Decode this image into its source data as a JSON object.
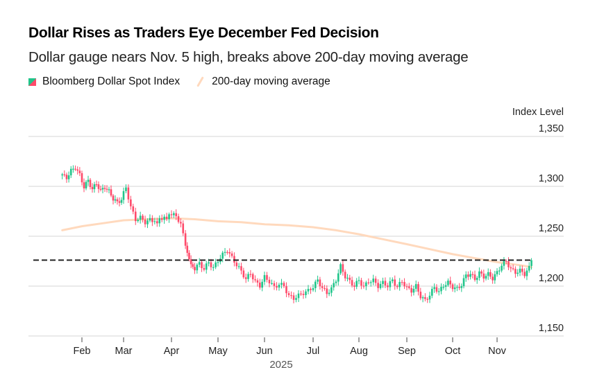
{
  "header": {
    "title": "Dollar Rises as Traders Eye December Fed Decision",
    "subtitle": "Dollar gauge nears Nov. 5 high, breaks above 200-day moving average"
  },
  "legend": [
    {
      "label": "Bloomberg Dollar Spot Index",
      "icon": "candlestick-swatch-icon"
    },
    {
      "label": "200-day moving average",
      "icon": "line-swatch-icon"
    }
  ],
  "colors": {
    "up": "#1fc58a",
    "down": "#ff4a6a",
    "moving_average": "#ffd9bd",
    "reference_line": "#222222",
    "grid": "#e3e3e3"
  },
  "chart_data": {
    "type": "candlestick",
    "title": "Dollar Rises as Traders Eye December Fed Decision",
    "subtitle": "Dollar gauge nears Nov. 5 high, breaks above 200-day moving average",
    "ylabel": "Index Level",
    "xlabel": "2025",
    "ylim": [
      1140,
      1350
    ],
    "y_ticks": [
      1350,
      1300,
      1250,
      1200,
      1150
    ],
    "y_tick_labels": [
      "1,350",
      "1,300",
      "1,250",
      "1,200",
      "1,150"
    ],
    "x_ticks": [
      "Feb",
      "Mar",
      "Apr",
      "May",
      "Jun",
      "Jul",
      "Aug",
      "Sep",
      "Oct",
      "Nov"
    ],
    "x_range_months": [
      0.45,
      10.75
    ],
    "grid": true,
    "legend_position": "top-left",
    "reference_line": {
      "value": 1226,
      "style": "dashed",
      "label": "Nov. 5 high"
    },
    "series": [
      {
        "name": "Bloomberg Dollar Spot Index",
        "kind": "candlestick",
        "waypoints_month_close": [
          [
            0.55,
            1312
          ],
          [
            0.65,
            1308
          ],
          [
            0.75,
            1316
          ],
          [
            0.85,
            1319
          ],
          [
            0.95,
            1311
          ],
          [
            1.05,
            1300
          ],
          [
            1.15,
            1305
          ],
          [
            1.25,
            1298
          ],
          [
            1.35,
            1302
          ],
          [
            1.45,
            1296
          ],
          [
            1.55,
            1299
          ],
          [
            1.65,
            1295
          ],
          [
            1.75,
            1288
          ],
          [
            1.85,
            1283
          ],
          [
            1.95,
            1288
          ],
          [
            2.05,
            1298
          ],
          [
            2.15,
            1280
          ],
          [
            2.25,
            1266
          ],
          [
            2.35,
            1269
          ],
          [
            2.45,
            1264
          ],
          [
            2.55,
            1266
          ],
          [
            2.7,
            1265
          ],
          [
            2.85,
            1268
          ],
          [
            3.0,
            1272
          ],
          [
            3.1,
            1270
          ],
          [
            3.2,
            1262
          ],
          [
            3.3,
            1242
          ],
          [
            3.38,
            1225
          ],
          [
            3.5,
            1218
          ],
          [
            3.6,
            1222
          ],
          [
            3.7,
            1218
          ],
          [
            3.8,
            1223
          ],
          [
            3.9,
            1219
          ],
          [
            4.0,
            1225
          ],
          [
            4.1,
            1232
          ],
          [
            4.2,
            1236
          ],
          [
            4.3,
            1228
          ],
          [
            4.4,
            1222
          ],
          [
            4.5,
            1214
          ],
          [
            4.6,
            1208
          ],
          [
            4.7,
            1212
          ],
          [
            4.8,
            1205
          ],
          [
            4.9,
            1200
          ],
          [
            5.0,
            1209
          ],
          [
            5.1,
            1205
          ],
          [
            5.2,
            1198
          ],
          [
            5.3,
            1203
          ],
          [
            5.4,
            1199
          ],
          [
            5.5,
            1191
          ],
          [
            5.6,
            1187
          ],
          [
            5.7,
            1191
          ],
          [
            5.8,
            1193
          ],
          [
            5.9,
            1195
          ],
          [
            6.0,
            1200
          ],
          [
            6.1,
            1205
          ],
          [
            6.2,
            1199
          ],
          [
            6.3,
            1192
          ],
          [
            6.4,
            1198
          ],
          [
            6.5,
            1206
          ],
          [
            6.6,
            1220
          ],
          [
            6.7,
            1210
          ],
          [
            6.8,
            1204
          ],
          [
            6.9,
            1201
          ],
          [
            7.0,
            1205
          ],
          [
            7.1,
            1200
          ],
          [
            7.2,
            1204
          ],
          [
            7.3,
            1206
          ],
          [
            7.4,
            1200
          ],
          [
            7.5,
            1203
          ],
          [
            7.6,
            1201
          ],
          [
            7.7,
            1205
          ],
          [
            7.8,
            1200
          ],
          [
            7.9,
            1204
          ],
          [
            8.0,
            1199
          ],
          [
            8.1,
            1195
          ],
          [
            8.2,
            1200
          ],
          [
            8.3,
            1190
          ],
          [
            8.4,
            1185
          ],
          [
            8.5,
            1192
          ],
          [
            8.6,
            1198
          ],
          [
            8.7,
            1195
          ],
          [
            8.8,
            1200
          ],
          [
            8.9,
            1204
          ],
          [
            9.0,
            1199
          ],
          [
            9.1,
            1197
          ],
          [
            9.2,
            1202
          ],
          [
            9.3,
            1210
          ],
          [
            9.4,
            1213
          ],
          [
            9.5,
            1206
          ],
          [
            9.6,
            1214
          ],
          [
            9.7,
            1209
          ],
          [
            9.8,
            1212
          ],
          [
            9.9,
            1208
          ],
          [
            10.0,
            1213
          ],
          [
            10.1,
            1222
          ],
          [
            10.2,
            1224
          ],
          [
            10.3,
            1218
          ],
          [
            10.4,
            1213
          ],
          [
            10.5,
            1216
          ],
          [
            10.6,
            1212
          ],
          [
            10.7,
            1218
          ],
          [
            10.75,
            1226
          ]
        ]
      },
      {
        "name": "200-day moving average",
        "kind": "line",
        "points_month_value": [
          [
            0.55,
            1256
          ],
          [
            1.0,
            1260
          ],
          [
            1.5,
            1263
          ],
          [
            2.0,
            1266
          ],
          [
            2.5,
            1267
          ],
          [
            3.0,
            1268
          ],
          [
            3.5,
            1267
          ],
          [
            4.0,
            1265
          ],
          [
            4.5,
            1264
          ],
          [
            5.0,
            1262
          ],
          [
            5.5,
            1261
          ],
          [
            6.0,
            1259
          ],
          [
            6.5,
            1256
          ],
          [
            7.0,
            1252
          ],
          [
            7.5,
            1247
          ],
          [
            8.0,
            1242
          ],
          [
            8.5,
            1237
          ],
          [
            9.0,
            1232
          ],
          [
            9.5,
            1228
          ],
          [
            10.0,
            1224
          ],
          [
            10.5,
            1221
          ],
          [
            10.75,
            1219
          ]
        ]
      }
    ]
  }
}
